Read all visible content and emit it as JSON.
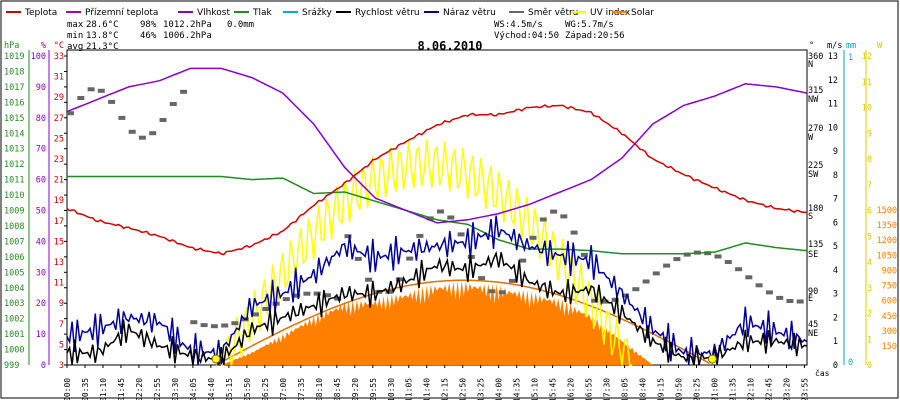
{
  "chart_data": {
    "type": "line",
    "title": "8.06.2010",
    "xlabel": "čas",
    "legend": [
      {
        "name": "Teplota",
        "color": "#d20000"
      },
      {
        "name": "Přízemní teplota",
        "color": "#a000c8"
      },
      {
        "name": "Vlhkost",
        "color": "#8800cc"
      },
      {
        "name": "Tlak",
        "color": "#228b22"
      },
      {
        "name": "Srážky",
        "color": "#00aacc"
      },
      {
        "name": "Rychlost větru",
        "color": "#000000"
      },
      {
        "name": "Náraz větru",
        "color": "#000099"
      },
      {
        "name": "Směr větru",
        "color": "#666666"
      },
      {
        "name": "UV index",
        "color": "#ffff00"
      },
      {
        "name": "Solar",
        "color": "#ff8000"
      }
    ],
    "stats": {
      "max_label": "max",
      "max_temp": "28.6°C",
      "max_hum": "98%",
      "max_press": "1012.2hPa",
      "rain": "0.0mm",
      "min_label": "min",
      "min_temp": "13.8°C",
      "min_hum": "46%",
      "min_press": "1006.2hPa",
      "avg_label": "avg",
      "avg_temp": "21.3°C"
    },
    "wind_info": {
      "ws": "WS:4.5m/s",
      "wg": "WG:5.7m/s",
      "sunrise": "Východ:04:50",
      "sunset": "Západ:20:56"
    },
    "axes": {
      "hpa": {
        "label": "hPa",
        "color": "#228b22",
        "ticks": [
          "1019",
          "1018",
          "1017",
          "1016",
          "1015",
          "1014",
          "1013",
          "1012",
          "1011",
          "1010",
          "1009",
          "1008",
          "1007",
          "1006",
          "1005",
          "1004",
          "1003",
          "1002",
          "1001",
          "1000",
          "999"
        ]
      },
      "pct": {
        "label": "%",
        "color": "#8800cc",
        "ticks": [
          "100",
          "90",
          "80",
          "70",
          "60",
          "50",
          "40",
          "30",
          "20",
          "10",
          "0"
        ]
      },
      "degc": {
        "label": "°C",
        "color": "#d20000",
        "ticks": [
          "33",
          "31",
          "29",
          "27",
          "25",
          "23",
          "21",
          "19",
          "17",
          "15",
          "13",
          "11",
          "9",
          "7",
          "5",
          "3"
        ]
      },
      "dir": {
        "label": "°",
        "ticks": [
          "360",
          "N",
          "315",
          "NW",
          "270",
          "W",
          "225",
          "SW",
          "180",
          "S",
          "135",
          "SE",
          "90",
          "E",
          "45",
          "NE"
        ]
      },
      "ms": {
        "label": "m/s",
        "ticks": [
          "13",
          "12",
          "11",
          "10",
          "9",
          "8",
          "7",
          "6",
          "5",
          "4",
          "3",
          "2",
          "1",
          "0"
        ]
      },
      "mm": {
        "label": "mm",
        "color": "#00aacc",
        "ticks": [
          "1",
          "0"
        ]
      },
      "uv": {
        "label": "W",
        "color": "#e6c800",
        "ticks": [
          "12",
          "11",
          "10",
          "9",
          "8",
          "7",
          "6",
          "5",
          "4",
          "3",
          "2",
          "1",
          "0"
        ]
      },
      "solar": {
        "ticks": [
          "1500",
          "1350",
          "1200",
          "1050",
          "900",
          "750",
          "600",
          "450",
          "300",
          "150"
        ]
      }
    },
    "x_ticks": [
      "00:00",
      "00:35",
      "01:10",
      "01:45",
      "02:20",
      "02:55",
      "03:30",
      "04:05",
      "04:40",
      "05:15",
      "05:50",
      "06:25",
      "07:00",
      "07:35",
      "08:10",
      "08:45",
      "09:20",
      "09:55",
      "10:30",
      "11:05",
      "11:40",
      "12:15",
      "12:50",
      "13:25",
      "14:00",
      "14:35",
      "15:10",
      "15:45",
      "16:20",
      "16:55",
      "17:30",
      "18:05",
      "18:40",
      "19:15",
      "19:50",
      "20:25",
      "21:00",
      "21:35",
      "22:10",
      "22:45",
      "23:20",
      "23:55"
    ],
    "series_hourly": {
      "hours": [
        0,
        1,
        2,
        3,
        4,
        5,
        6,
        7,
        8,
        9,
        10,
        11,
        12,
        13,
        14,
        15,
        16,
        17,
        18,
        19,
        20,
        21,
        22,
        23,
        24
      ],
      "temperature_c": [
        18.2,
        17.0,
        16.3,
        15.5,
        14.4,
        13.8,
        14.6,
        16.0,
        18.5,
        20.6,
        23.0,
        24.7,
        26.3,
        27.3,
        27.3,
        28.0,
        28.2,
        27.5,
        25.5,
        23.0,
        21.5,
        20.2,
        19.0,
        18.2,
        17.8
      ],
      "humidity_pct": [
        82,
        86,
        90,
        92,
        96,
        96,
        93,
        88,
        78,
        64,
        54,
        50,
        46,
        47,
        49,
        52,
        56,
        60,
        67,
        78,
        84,
        87,
        91,
        90,
        88
      ],
      "pressure_hpa": [
        1011.2,
        1011.2,
        1011.2,
        1011.2,
        1011.2,
        1011.2,
        1011.0,
        1011.1,
        1010.1,
        1010.2,
        1009.6,
        1009.0,
        1008.4,
        1008.1,
        1007.1,
        1006.5,
        1006.5,
        1006.4,
        1006.2,
        1006.2,
        1006.2,
        1006.3,
        1006.9,
        1006.6,
        1006.4
      ],
      "wind_speed_ms": [
        0.5,
        0.5,
        1.5,
        0.8,
        0.4,
        0.2,
        1.5,
        2.0,
        2.5,
        3.0,
        3.0,
        3.5,
        4.2,
        4.0,
        4.5,
        3.5,
        3.0,
        3.2,
        2.2,
        1.0,
        0.3,
        0.3,
        1.0,
        1.0,
        0.8
      ],
      "wind_gust_ms": [
        1.2,
        1.5,
        2.0,
        1.8,
        0.6,
        0.5,
        2.5,
        3.0,
        3.8,
        5.0,
        4.5,
        4.8,
        5.0,
        5.2,
        5.7,
        5.0,
        4.6,
        4.4,
        3.0,
        1.5,
        0.5,
        0.5,
        1.8,
        1.4,
        1.0
      ],
      "solar_wm2": [
        0,
        0,
        0,
        0,
        0,
        0,
        130,
        300,
        480,
        620,
        650,
        720,
        800,
        820,
        780,
        720,
        650,
        500,
        250,
        0,
        0,
        0,
        0,
        0,
        0
      ]
    }
  }
}
